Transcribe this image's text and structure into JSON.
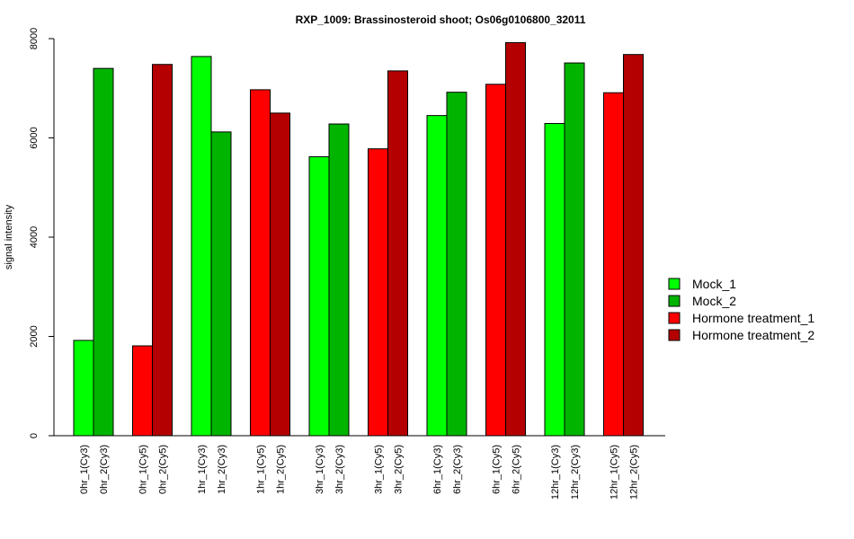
{
  "chart_data": {
    "type": "bar",
    "title": "RXP_1009: Brassinosteroid shoot; Os06g0106800_32011",
    "xlabel": "",
    "ylabel": "signal intensity",
    "ylim": [
      0,
      8000
    ],
    "yticks": [
      0,
      2000,
      4000,
      6000,
      8000
    ],
    "grid": false,
    "legend_position": "right",
    "groups": [
      {
        "labels": [
          "0hr_1(Cy3)",
          "0hr_2(Cy3)"
        ],
        "values": [
          1920,
          7400
        ],
        "series": [
          "Mock_1",
          "Mock_2"
        ]
      },
      {
        "labels": [
          "0hr_1(Cy5)",
          "0hr_2(Cy5)"
        ],
        "values": [
          1810,
          7480
        ],
        "series": [
          "Hormone treatment_1",
          "Hormone treatment_2"
        ]
      },
      {
        "labels": [
          "1hr_1(Cy3)",
          "1hr_2(Cy3)"
        ],
        "values": [
          7640,
          6120
        ],
        "series": [
          "Mock_1",
          "Mock_2"
        ]
      },
      {
        "labels": [
          "1hr_1(Cy5)",
          "1hr_2(Cy5)"
        ],
        "values": [
          6970,
          6500
        ],
        "series": [
          "Hormone treatment_1",
          "Hormone treatment_2"
        ]
      },
      {
        "labels": [
          "3hr_1(Cy3)",
          "3hr_2(Cy3)"
        ],
        "values": [
          5620,
          6280
        ],
        "series": [
          "Mock_1",
          "Mock_2"
        ]
      },
      {
        "labels": [
          "3hr_1(Cy5)",
          "3hr_2(Cy5)"
        ],
        "values": [
          5780,
          7350
        ],
        "series": [
          "Hormone treatment_1",
          "Hormone treatment_2"
        ]
      },
      {
        "labels": [
          "6hr_1(Cy3)",
          "6hr_2(Cy3)"
        ],
        "values": [
          6450,
          6920
        ],
        "series": [
          "Mock_1",
          "Mock_2"
        ]
      },
      {
        "labels": [
          "6hr_1(Cy5)",
          "6hr_2(Cy5)"
        ],
        "values": [
          7080,
          7920
        ],
        "series": [
          "Hormone treatment_1",
          "Hormone treatment_2"
        ]
      },
      {
        "labels": [
          "12hr_1(Cy3)",
          "12hr_2(Cy3)"
        ],
        "values": [
          6290,
          7510
        ],
        "series": [
          "Mock_1",
          "Mock_2"
        ]
      },
      {
        "labels": [
          "12hr_1(Cy5)",
          "12hr_2(Cy5)"
        ],
        "values": [
          6910,
          7680
        ],
        "series": [
          "Hormone treatment_1",
          "Hormone treatment_2"
        ]
      }
    ],
    "legend": [
      {
        "name": "Mock_1",
        "color": "#00ff00"
      },
      {
        "name": "Mock_2",
        "color": "#00b400"
      },
      {
        "name": "Hormone treatment_1",
        "color": "#ff0000"
      },
      {
        "name": "Hormone treatment_2",
        "color": "#b40000"
      }
    ]
  }
}
